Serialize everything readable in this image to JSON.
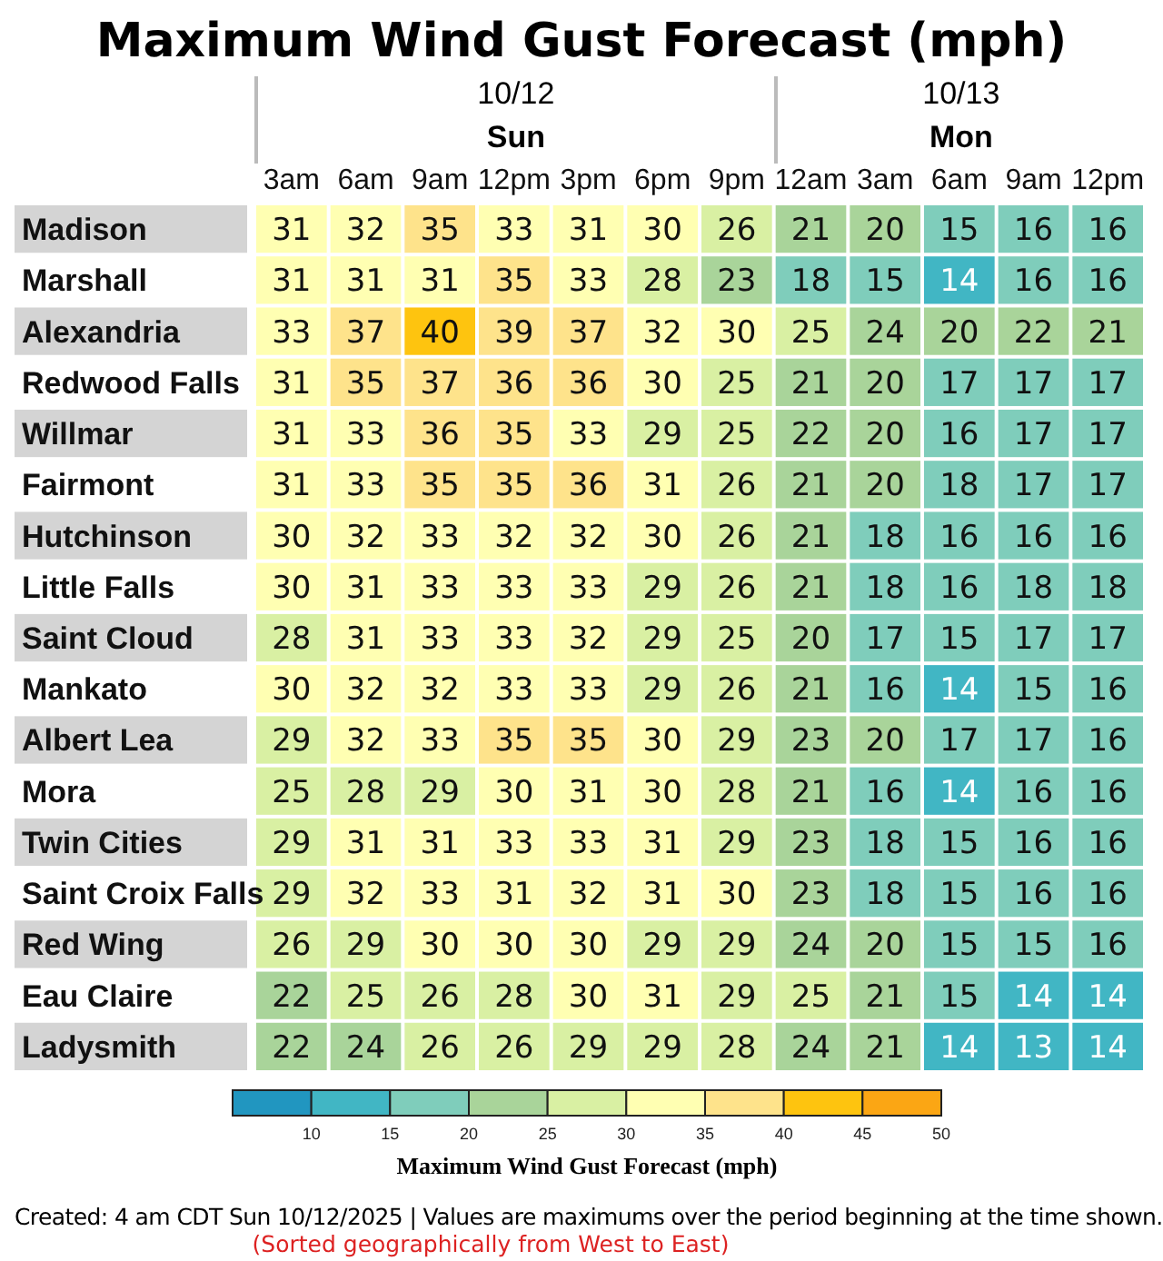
{
  "chart_data": {
    "type": "heatmap",
    "title": "Maximum Wind Gust Forecast (mph)",
    "categories": [
      "3am",
      "6am",
      "9am",
      "12pm",
      "3pm",
      "6pm",
      "9pm",
      "12am",
      "3am",
      "6am",
      "9am",
      "12pm"
    ],
    "y_categories": [
      "Madison",
      "Marshall",
      "Alexandria",
      "Redwood Falls",
      "Willmar",
      "Fairmont",
      "Hutchinson",
      "Little Falls",
      "Saint Cloud",
      "Mankato",
      "Albert Lea",
      "Mora",
      "Twin Cities",
      "Saint Croix Falls",
      "Red Wing",
      "Eau Claire",
      "Ladysmith"
    ],
    "cells": [
      [
        31,
        32,
        35,
        33,
        31,
        30,
        26,
        21,
        20,
        15,
        16,
        16
      ],
      [
        31,
        31,
        31,
        35,
        33,
        28,
        23,
        18,
        15,
        14,
        16,
        16
      ],
      [
        33,
        37,
        40,
        39,
        37,
        32,
        30,
        25,
        24,
        20,
        22,
        21
      ],
      [
        31,
        35,
        37,
        36,
        36,
        30,
        25,
        21,
        20,
        17,
        17,
        17
      ],
      [
        31,
        33,
        36,
        35,
        33,
        29,
        25,
        22,
        20,
        16,
        17,
        17
      ],
      [
        31,
        33,
        35,
        35,
        36,
        31,
        26,
        21,
        20,
        18,
        17,
        17
      ],
      [
        30,
        32,
        33,
        32,
        32,
        30,
        26,
        21,
        18,
        16,
        16,
        16
      ],
      [
        30,
        31,
        33,
        33,
        33,
        29,
        26,
        21,
        18,
        16,
        18,
        18
      ],
      [
        28,
        31,
        33,
        33,
        32,
        29,
        25,
        20,
        17,
        15,
        17,
        17
      ],
      [
        30,
        32,
        32,
        33,
        33,
        29,
        26,
        21,
        16,
        14,
        15,
        16
      ],
      [
        29,
        32,
        33,
        35,
        35,
        30,
        29,
        23,
        20,
        17,
        17,
        16
      ],
      [
        25,
        28,
        29,
        30,
        31,
        30,
        28,
        21,
        16,
        14,
        16,
        16
      ],
      [
        29,
        31,
        31,
        33,
        33,
        31,
        29,
        23,
        18,
        15,
        16,
        16
      ],
      [
        29,
        32,
        33,
        31,
        32,
        31,
        30,
        23,
        18,
        15,
        16,
        16
      ],
      [
        26,
        29,
        30,
        30,
        30,
        29,
        29,
        24,
        20,
        15,
        15,
        16
      ],
      [
        22,
        25,
        26,
        28,
        30,
        31,
        29,
        25,
        21,
        15,
        14,
        14
      ],
      [
        22,
        24,
        26,
        26,
        29,
        29,
        28,
        24,
        21,
        14,
        13,
        14
      ]
    ],
    "clim": [
      5,
      50
    ],
    "cticks": [
      10,
      15,
      20,
      25,
      30,
      35,
      40,
      45,
      50
    ],
    "colors": [
      "#2196c0",
      "#41b6c4",
      "#7fcdbb",
      "#a9d49a",
      "#d9f0a3",
      "#ffffb2",
      "#fee38b",
      "#fec40f",
      "#fba614"
    ],
    "clabel": "Maximum Wind Gust Forecast (mph)",
    "data_labels": true,
    "annotations": [
      "10/12",
      "Sun",
      "10/13",
      "Mon",
      "Created: 4 am CDT Sun 10/12/2025  |  Values are maximums over the period beginning at the time shown.",
      "(Sorted geographically from West to East)"
    ]
  }
}
